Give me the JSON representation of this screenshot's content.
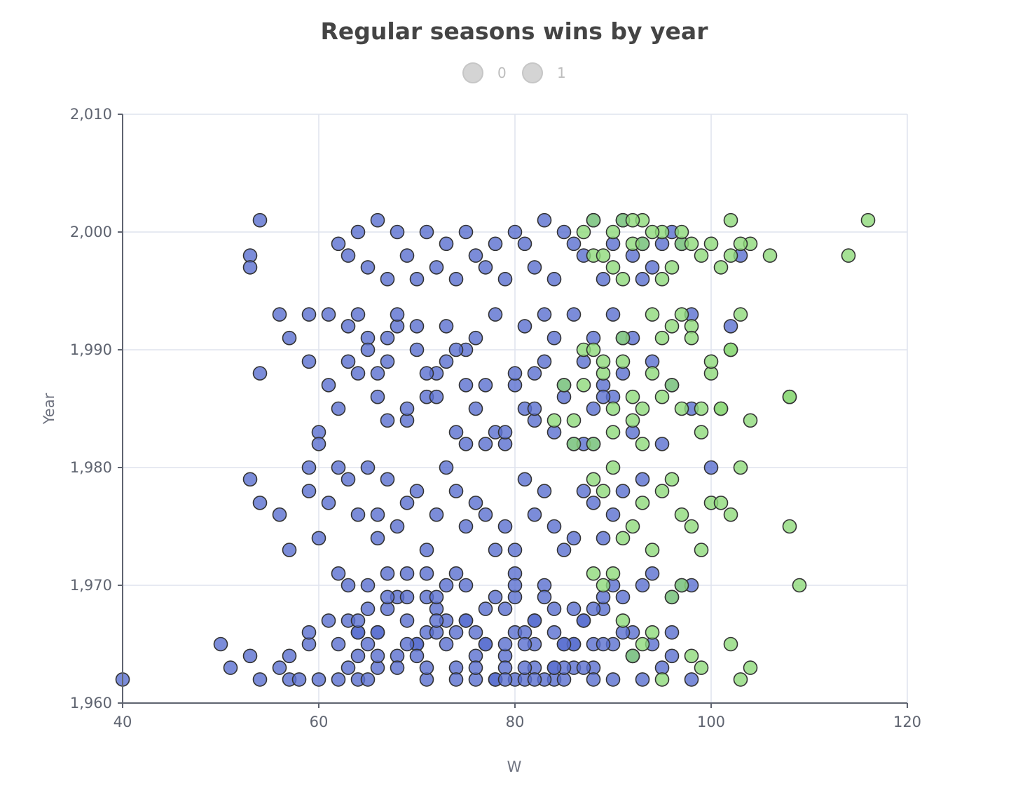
{
  "chart_data": {
    "type": "scatter",
    "title": "Regular seasons wins by year",
    "xlabel": "W",
    "ylabel": "Year",
    "xlim": [
      40,
      120
    ],
    "ylim": [
      1960,
      2010
    ],
    "x_ticks": [
      40,
      60,
      80,
      100,
      120
    ],
    "x_tick_labels": [
      "40",
      "60",
      "80",
      "100",
      "120"
    ],
    "y_ticks": [
      1960,
      1970,
      1980,
      1990,
      2000,
      2010
    ],
    "y_tick_labels": [
      "1,960",
      "1,970",
      "1,980",
      "1,990",
      "2,000",
      "2,010"
    ],
    "grid": true,
    "legend_position": "top-center",
    "legend_entries": [
      "0",
      "1"
    ],
    "series": [
      {
        "name": "0",
        "color": "#5a6fcf",
        "x": [
          40,
          50,
          51,
          53,
          54,
          56,
          57,
          57,
          58,
          59,
          59,
          60,
          61,
          62,
          63,
          64,
          64,
          64,
          65,
          65,
          66,
          66,
          67,
          68,
          69,
          69,
          70,
          71,
          71,
          71,
          72,
          72,
          73,
          74,
          74,
          75,
          76,
          76,
          77,
          78,
          79,
          79,
          79,
          80,
          80,
          80,
          81,
          81,
          82,
          82,
          82,
          83,
          84,
          84,
          84,
          85,
          85,
          86,
          86,
          87,
          88,
          88,
          89,
          90,
          92,
          92,
          93,
          94,
          95,
          96,
          53,
          54,
          56,
          57,
          59,
          59,
          60,
          61,
          62,
          63,
          64,
          65,
          66,
          66,
          67,
          68,
          69,
          70,
          71,
          72,
          73,
          74,
          75,
          76,
          77,
          78,
          79,
          80,
          81,
          82,
          83,
          84,
          85,
          86,
          87,
          88,
          89,
          90,
          91,
          93,
          54,
          57,
          59,
          60,
          61,
          62,
          63,
          64,
          65,
          66,
          67,
          67,
          68,
          69,
          70,
          71,
          72,
          73,
          74,
          75,
          75,
          76,
          77,
          78,
          79,
          80,
          81,
          82,
          82,
          83,
          84,
          85,
          86,
          87,
          88,
          88,
          89,
          90,
          91,
          92,
          94,
          95,
          96,
          98,
          100,
          59,
          60,
          61,
          63,
          64,
          65,
          66,
          67,
          68,
          69,
          70,
          71,
          72,
          73,
          74,
          75,
          76,
          77,
          78,
          79,
          80,
          81,
          82,
          83,
          84,
          85,
          86,
          87,
          88,
          89,
          90,
          91,
          92,
          93,
          53,
          54,
          62,
          63,
          64,
          65,
          66,
          67,
          68,
          69,
          70,
          71,
          72,
          73,
          74,
          75,
          76,
          77,
          78,
          79,
          80,
          81,
          82,
          83,
          84,
          85,
          86,
          87,
          88,
          89,
          90,
          91,
          92,
          93,
          94,
          95,
          96,
          97,
          98,
          102,
          103,
          53,
          56,
          62,
          63,
          64,
          65,
          66,
          67,
          68,
          69,
          70,
          71,
          72,
          73,
          74,
          75,
          76,
          77,
          78,
          79,
          80,
          81,
          82,
          83,
          84,
          85,
          86,
          87,
          88,
          89,
          90,
          91,
          92,
          93,
          96,
          97,
          98,
          62,
          63,
          64,
          65,
          66,
          67,
          68,
          69,
          70,
          71,
          72,
          73,
          74,
          75,
          76,
          77,
          78,
          79,
          80,
          81,
          82,
          83,
          84,
          85,
          86,
          87,
          88,
          89,
          90,
          91,
          94,
          96,
          98
        ],
        "y": [
          1962,
          1965,
          1963,
          1964,
          1962,
          1963,
          1964,
          1962,
          1962,
          1965,
          1966,
          1962,
          1967,
          1965,
          1967,
          1962,
          1966,
          1964,
          1965,
          1968,
          1963,
          1964,
          1968,
          1969,
          1967,
          1969,
          1965,
          1966,
          1969,
          1962,
          1968,
          1966,
          1970,
          1963,
          1966,
          1967,
          1962,
          1966,
          1965,
          1962,
          1964,
          1963,
          1968,
          1962,
          1966,
          1969,
          1962,
          1966,
          1967,
          1963,
          1965,
          1970,
          1962,
          1963,
          1966,
          1965,
          1962,
          1965,
          1963,
          1967,
          1965,
          1963,
          1968,
          1965,
          1966,
          1964,
          1962,
          1965,
          1963,
          1966,
          1979,
          1977,
          1976,
          1973,
          1978,
          1980,
          1974,
          1977,
          1980,
          1979,
          1976,
          1980,
          1974,
          1976,
          1979,
          1975,
          1977,
          1978,
          1973,
          1976,
          1980,
          1978,
          1975,
          1977,
          1976,
          1973,
          1975,
          1973,
          1979,
          1976,
          1978,
          1975,
          1973,
          1974,
          1978,
          1977,
          1974,
          1976,
          1978,
          1979,
          1988,
          1991,
          1989,
          1983,
          1987,
          1985,
          1989,
          1988,
          1991,
          1986,
          1989,
          1984,
          1992,
          1984,
          1990,
          1986,
          1988,
          1989,
          1983,
          1990,
          1982,
          1985,
          1987,
          1983,
          1982,
          1987,
          1985,
          1988,
          1984,
          1989,
          1983,
          1986,
          1982,
          1989,
          1982,
          1985,
          1987,
          1986,
          1991,
          1983,
          1989,
          1982,
          1987,
          1985,
          1980,
          1993,
          1982,
          1993,
          1992,
          1993,
          1990,
          1988,
          1991,
          1993,
          1985,
          1992,
          1988,
          1986,
          1992,
          1990,
          1987,
          1991,
          1982,
          1993,
          1983,
          1988,
          1992,
          1985,
          1993,
          1991,
          1987,
          1993,
          1982,
          1991,
          1986,
          1993,
          1988,
          1991,
          1996,
          1998,
          2001,
          1999,
          1998,
          2000,
          1997,
          2001,
          1996,
          2000,
          1998,
          1996,
          2000,
          1997,
          1999,
          1996,
          2000,
          1998,
          1997,
          1999,
          1996,
          2000,
          1999,
          1997,
          2001,
          1996,
          2000,
          1999,
          1998,
          2001,
          1996,
          1999,
          2001,
          1998,
          1999,
          1997,
          1999,
          2000,
          1999,
          1993,
          1992,
          1998,
          1997,
          1993,
          1962,
          1963,
          1966,
          1970,
          1966,
          1969,
          1964,
          1971,
          1965,
          1963,
          1969,
          1967,
          1971,
          1967,
          1964,
          1968,
          1962,
          1965,
          1971,
          1963,
          1967,
          1962,
          1968,
          1963,
          1965,
          1967,
          1962,
          1965,
          1970,
          1969,
          1964,
          1970,
          1969,
          1970,
          1962,
          1971,
          1970,
          1967,
          1962,
          1966,
          1971,
          1963,
          1965,
          1964,
          1971,
          1967,
          1965,
          1962,
          1970,
          1963,
          1965,
          1969,
          1962,
          1970,
          1965,
          1962,
          1969,
          1963,
          1965,
          1968,
          1963,
          1968,
          1969,
          1962,
          1966,
          1971,
          1964,
          1970
        ],
        "opacity": 0.8
      },
      {
        "name": "1",
        "color": "#8fd97a",
        "x": [
          88,
          90,
          91,
          92,
          93,
          95,
          97,
          99,
          101,
          102,
          104,
          106,
          114,
          116,
          87,
          88,
          89,
          90,
          91,
          92,
          93,
          94,
          95,
          96,
          97,
          98,
          100,
          102,
          103,
          85,
          86,
          87,
          88,
          89,
          90,
          91,
          92,
          93,
          94,
          95,
          96,
          97,
          98,
          99,
          100,
          101,
          102,
          103,
          104,
          108,
          84,
          86,
          87,
          88,
          89,
          90,
          91,
          92,
          93,
          94,
          95,
          96,
          97,
          98,
          99,
          100,
          101,
          102,
          103,
          108,
          88,
          89,
          90,
          91,
          92,
          93,
          94,
          95,
          96,
          97,
          98,
          99,
          100,
          101,
          102,
          108,
          109,
          88,
          89,
          90,
          91,
          92,
          93,
          94,
          95,
          96,
          97,
          98,
          99,
          102,
          103,
          104
        ],
        "y": [
          2001,
          2000,
          2001,
          1999,
          2001,
          2000,
          1999,
          1998,
          1997,
          2001,
          1999,
          1998,
          1998,
          2001,
          2000,
          1998,
          1998,
          1997,
          1996,
          2001,
          1999,
          2000,
          1996,
          1997,
          2000,
          1999,
          1999,
          1998,
          1999,
          1987,
          1984,
          1990,
          1982,
          1988,
          1983,
          1989,
          1986,
          1985,
          1993,
          1991,
          1987,
          1993,
          1992,
          1985,
          1988,
          1985,
          1990,
          1993,
          1984,
          1986,
          1984,
          1982,
          1987,
          1990,
          1989,
          1985,
          1991,
          1984,
          1982,
          1988,
          1986,
          1992,
          1985,
          1991,
          1983,
          1989,
          1985,
          1990,
          1980,
          1986,
          1979,
          1978,
          1980,
          1974,
          1975,
          1977,
          1973,
          1978,
          1979,
          1976,
          1975,
          1973,
          1977,
          1977,
          1976,
          1975,
          1970,
          1971,
          1970,
          1971,
          1967,
          1964,
          1965,
          1966,
          1962,
          1969,
          1970,
          1964,
          1963,
          1965,
          1962,
          1963
        ],
        "opacity": 0.8
      }
    ]
  }
}
